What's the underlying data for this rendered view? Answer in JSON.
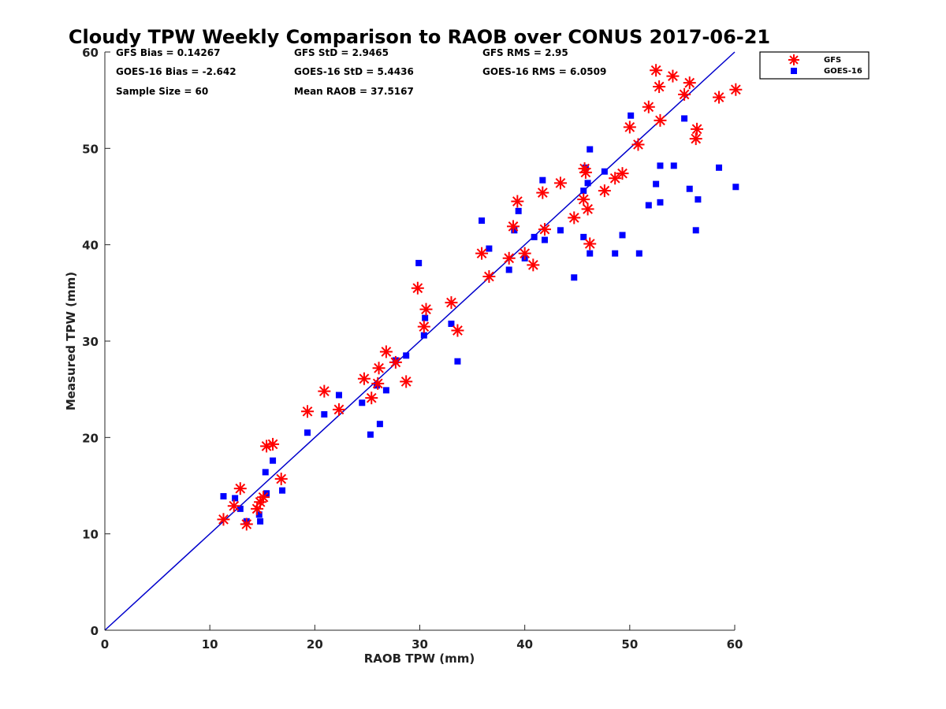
{
  "chart_data": {
    "type": "scatter",
    "title": "Cloudy TPW Weekly Comparison to RAOB over CONUS 2017-06-21",
    "xlabel": "RAOB TPW (mm)",
    "ylabel": "Measured TPW (mm)",
    "xlim": [
      0,
      60
    ],
    "ylim": [
      0,
      60
    ],
    "xticks": [
      "0",
      "10",
      "20",
      "30",
      "40",
      "50",
      "60"
    ],
    "yticks": [
      "0",
      "10",
      "20",
      "30",
      "40",
      "50",
      "60"
    ],
    "grid": false,
    "legend_position": "outside-top-right",
    "reference_line": {
      "from": [
        0,
        0
      ],
      "to": [
        60,
        60
      ],
      "color": "#0000cc"
    },
    "stats": {
      "gfs_bias": "GFS Bias = 0.14267",
      "goes_bias": "GOES-16 Bias = -2.642",
      "sample_size": "Sample Size = 60",
      "gfs_std": "GFS StD = 2.9465",
      "goes_std": "GOES-16 StD = 5.4436",
      "mean_raob": "Mean RAOB = 37.5167",
      "gfs_rms": "GFS RMS = 2.95",
      "goes_rms": "GOES-16 RMS = 6.0509"
    },
    "series": [
      {
        "name": "GFS",
        "marker": "asterisk",
        "color": "#ff0000",
        "points": [
          [
            11.3,
            11.5
          ],
          [
            12.3,
            12.9
          ],
          [
            12.9,
            14.7
          ],
          [
            13.5,
            11.0
          ],
          [
            14.5,
            12.6
          ],
          [
            14.8,
            13.3
          ],
          [
            15.1,
            13.8
          ],
          [
            15.4,
            19.1
          ],
          [
            16.0,
            19.3
          ],
          [
            16.8,
            15.7
          ],
          [
            19.3,
            22.7
          ],
          [
            20.9,
            24.8
          ],
          [
            22.3,
            22.9
          ],
          [
            24.7,
            26.1
          ],
          [
            25.4,
            24.1
          ],
          [
            26.1,
            27.2
          ],
          [
            26.0,
            25.6
          ],
          [
            26.8,
            28.9
          ],
          [
            27.7,
            27.8
          ],
          [
            28.7,
            25.8
          ],
          [
            29.8,
            35.5
          ],
          [
            30.4,
            31.5
          ],
          [
            30.6,
            33.3
          ],
          [
            33.0,
            34.0
          ],
          [
            33.6,
            31.1
          ],
          [
            35.9,
            39.1
          ],
          [
            36.6,
            36.7
          ],
          [
            38.5,
            38.6
          ],
          [
            38.9,
            41.9
          ],
          [
            39.3,
            44.5
          ],
          [
            40.0,
            39.1
          ],
          [
            40.8,
            37.9
          ],
          [
            41.7,
            45.4
          ],
          [
            41.9,
            41.6
          ],
          [
            43.4,
            46.4
          ],
          [
            44.7,
            42.8
          ],
          [
            45.6,
            44.7
          ],
          [
            45.7,
            47.9
          ],
          [
            46.0,
            43.7
          ],
          [
            45.8,
            47.5
          ],
          [
            46.2,
            40.1
          ],
          [
            47.6,
            45.6
          ],
          [
            48.6,
            46.9
          ],
          [
            49.3,
            47.4
          ],
          [
            50.0,
            52.2
          ],
          [
            50.8,
            50.4
          ],
          [
            51.8,
            54.3
          ],
          [
            52.5,
            58.1
          ],
          [
            52.8,
            56.4
          ],
          [
            52.9,
            52.9
          ],
          [
            54.1,
            57.5
          ],
          [
            55.2,
            55.6
          ],
          [
            55.7,
            56.8
          ],
          [
            56.3,
            51.0
          ],
          [
            56.4,
            52.0
          ],
          [
            58.5,
            55.3
          ],
          [
            60.1,
            56.1
          ]
        ]
      },
      {
        "name": "GOES-16",
        "marker": "square",
        "color": "#0000ff",
        "points": [
          [
            11.3,
            13.9
          ],
          [
            12.4,
            13.7
          ],
          [
            12.9,
            12.6
          ],
          [
            13.5,
            11.3
          ],
          [
            14.7,
            12.0
          ],
          [
            14.8,
            11.3
          ],
          [
            15.3,
            16.4
          ],
          [
            15.4,
            14.2
          ],
          [
            16.0,
            17.6
          ],
          [
            16.9,
            14.5
          ],
          [
            19.3,
            20.5
          ],
          [
            20.9,
            22.4
          ],
          [
            22.3,
            24.4
          ],
          [
            24.5,
            23.6
          ],
          [
            25.3,
            20.3
          ],
          [
            26.2,
            21.4
          ],
          [
            25.9,
            25.4
          ],
          [
            26.8,
            24.9
          ],
          [
            27.7,
            28.0
          ],
          [
            28.7,
            28.5
          ],
          [
            29.9,
            38.1
          ],
          [
            30.5,
            32.4
          ],
          [
            30.4,
            30.6
          ],
          [
            33.0,
            31.8
          ],
          [
            33.6,
            27.9
          ],
          [
            35.9,
            42.5
          ],
          [
            36.6,
            39.6
          ],
          [
            38.5,
            37.4
          ],
          [
            39.0,
            41.5
          ],
          [
            39.4,
            43.5
          ],
          [
            40.0,
            38.6
          ],
          [
            40.9,
            40.8
          ],
          [
            41.7,
            46.7
          ],
          [
            41.9,
            40.5
          ],
          [
            43.4,
            41.5
          ],
          [
            44.7,
            36.6
          ],
          [
            45.6,
            40.8
          ],
          [
            45.6,
            45.6
          ],
          [
            45.8,
            48.0
          ],
          [
            46.0,
            46.4
          ],
          [
            46.2,
            49.9
          ],
          [
            46.2,
            39.1
          ],
          [
            47.6,
            47.6
          ],
          [
            48.6,
            39.1
          ],
          [
            49.3,
            41.0
          ],
          [
            50.1,
            53.4
          ],
          [
            50.9,
            39.1
          ],
          [
            51.8,
            44.1
          ],
          [
            52.5,
            46.3
          ],
          [
            52.9,
            48.2
          ],
          [
            52.9,
            44.4
          ],
          [
            54.2,
            48.2
          ],
          [
            55.2,
            53.1
          ],
          [
            55.7,
            45.8
          ],
          [
            56.3,
            41.5
          ],
          [
            56.5,
            44.7
          ],
          [
            58.5,
            48.0
          ],
          [
            60.1,
            46.0
          ]
        ]
      }
    ]
  }
}
